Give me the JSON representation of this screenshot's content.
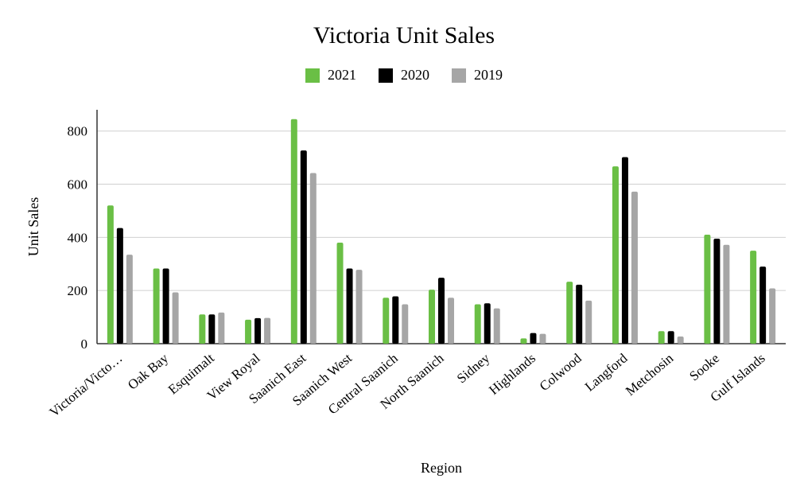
{
  "chart_data": {
    "type": "bar",
    "title": "Victoria Unit Sales",
    "xlabel": "Region",
    "ylabel": "Unit Sales",
    "ylim": [
      0,
      880
    ],
    "yticks": [
      0,
      200,
      400,
      600,
      800
    ],
    "grid": true,
    "legend_position": "top",
    "categories": [
      "Victoria/Victo…",
      "Oak Bay",
      "Esquimalt",
      "View Royal",
      "Saanich East",
      "Saanich West",
      "Central Saanich",
      "North Saanich",
      "Sidney",
      "Highlands",
      "Colwood",
      "Langford",
      "Metchosin",
      "Sooke",
      "Gulf Islands"
    ],
    "series": [
      {
        "name": "2021",
        "color": "#6abf45",
        "values": [
          520,
          283,
          110,
          90,
          845,
          380,
          173,
          203,
          148,
          20,
          233,
          667,
          47,
          410,
          350
        ]
      },
      {
        "name": "2020",
        "color": "#000000",
        "values": [
          435,
          283,
          110,
          96,
          727,
          283,
          178,
          248,
          152,
          40,
          222,
          702,
          47,
          395,
          290
        ]
      },
      {
        "name": "2019",
        "color": "#a6a6a6",
        "values": [
          335,
          193,
          117,
          97,
          642,
          278,
          148,
          173,
          133,
          37,
          162,
          572,
          27,
          372,
          208
        ]
      }
    ]
  }
}
